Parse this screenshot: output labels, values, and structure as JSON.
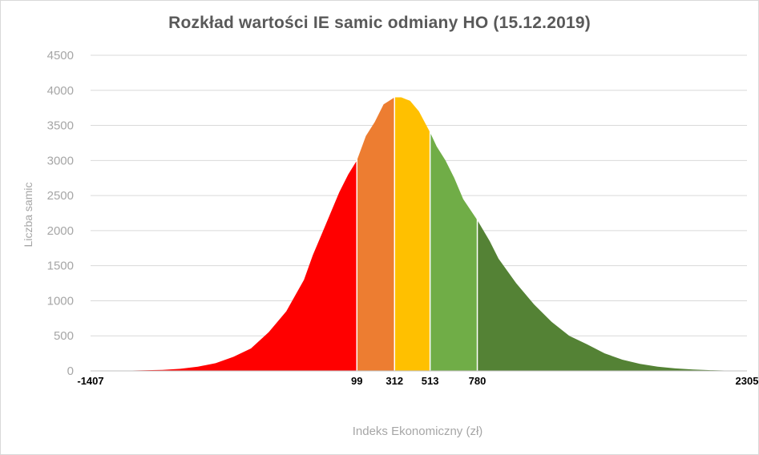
{
  "chart_data": {
    "type": "area",
    "title": "Rozkład wartości IE samic odmiany HO (15.12.2019)",
    "xlabel": "Indeks Ekonomiczny (zł)",
    "ylabel": "Liczba samic",
    "xlim": [
      -1407,
      2305
    ],
    "ylim": [
      0,
      4500
    ],
    "y_ticks": [
      "0",
      "500",
      "1000",
      "1500",
      "2000",
      "2500",
      "3000",
      "3500",
      "4000",
      "4500"
    ],
    "x_ticks": [
      "-1407",
      "99",
      "312",
      "513",
      "780",
      "2305"
    ],
    "grid": "horizontal",
    "x": [
      -1407,
      -1200,
      -1000,
      -900,
      -800,
      -700,
      -600,
      -500,
      -400,
      -300,
      -200,
      -150,
      -100,
      -50,
      0,
      50,
      99,
      150,
      200,
      250,
      312,
      350,
      400,
      450,
      513,
      550,
      600,
      650,
      700,
      780,
      850,
      900,
      1000,
      1100,
      1200,
      1300,
      1400,
      1500,
      1600,
      1700,
      1800,
      1900,
      2000,
      2100,
      2200,
      2305
    ],
    "y": [
      0,
      5,
      15,
      30,
      60,
      110,
      200,
      320,
      550,
      850,
      1300,
      1650,
      1950,
      2250,
      2550,
      2800,
      3000,
      3350,
      3550,
      3800,
      3900,
      3900,
      3850,
      3700,
      3400,
      3200,
      3000,
      2750,
      2450,
      2150,
      1850,
      1600,
      1250,
      950,
      700,
      500,
      380,
      250,
      160,
      100,
      60,
      35,
      20,
      10,
      5,
      0
    ],
    "series": [
      {
        "range": [
          -1407,
          99
        ],
        "color": "#ff0000"
      },
      {
        "range": [
          99,
          312
        ],
        "color": "#ed7d31"
      },
      {
        "range": [
          312,
          513
        ],
        "color": "#ffc000"
      },
      {
        "range": [
          513,
          780
        ],
        "color": "#70ad47"
      },
      {
        "range": [
          780,
          2305
        ],
        "color": "#548235"
      }
    ],
    "colors": {
      "grid": "#d9d9d9",
      "axis": "#bfbfbf",
      "divider": "#ffffff"
    }
  }
}
